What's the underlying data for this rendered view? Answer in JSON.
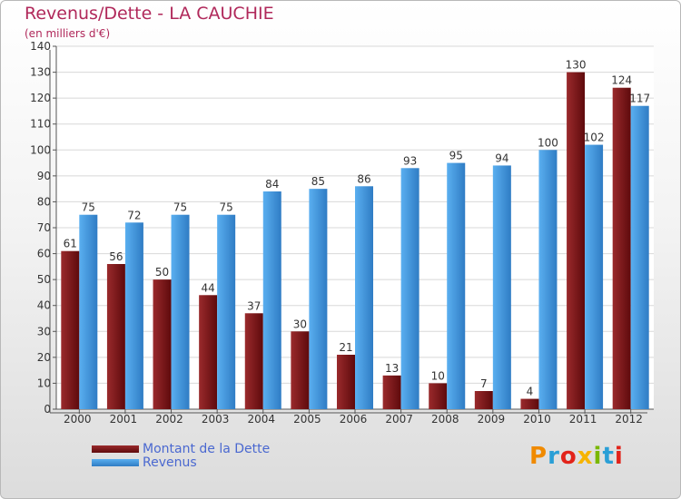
{
  "chart_data": {
    "type": "bar",
    "title": "Revenus/Dette - LA CAUCHIE",
    "subtitle": "(en milliers d'€)",
    "categories": [
      "2000",
      "2001",
      "2002",
      "2003",
      "2004",
      "2005",
      "2006",
      "2007",
      "2008",
      "2009",
      "2010",
      "2011",
      "2012"
    ],
    "series": [
      {
        "name": "Montant de la Dette",
        "color": "#7a1416",
        "values": [
          61,
          56,
          50,
          44,
          37,
          30,
          21,
          13,
          10,
          7,
          4,
          130,
          124
        ]
      },
      {
        "name": "Revenus",
        "color": "#4a9de0",
        "values": [
          75,
          72,
          75,
          75,
          84,
          85,
          86,
          93,
          95,
          94,
          100,
          102,
          117
        ]
      }
    ],
    "ylim": [
      0,
      140
    ],
    "yticks": [
      0,
      10,
      20,
      30,
      40,
      50,
      60,
      70,
      80,
      90,
      100,
      110,
      120,
      130,
      140
    ],
    "grid": true,
    "legend_position": "bottom-left"
  },
  "logo": {
    "text": "Proxiti",
    "colors": [
      "#f08a00",
      "#2a9fd6",
      "#e2231a",
      "#f6b400",
      "#7ab800",
      "#2a9fd6",
      "#e2231a"
    ]
  }
}
